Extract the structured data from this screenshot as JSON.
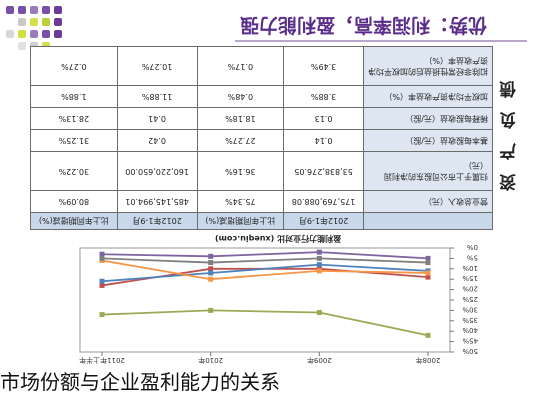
{
  "header": {
    "title": "优势：利润率高，盈利能力强"
  },
  "table": {
    "side_label": "资产负债",
    "columns": [
      "",
      "",
      "2012年1-9月",
      "比上年同期增减(%)",
      "2012年1-9月",
      "比上年同期增减(%)"
    ],
    "rows": [
      {
        "label": "营业总收入（元）",
        "values": [
          "175,769,088.08",
          "75.34%",
          "485,145,994.01",
          "80.09%"
        ]
      },
      {
        "label": "归属于上市公司股东的净利润（元）",
        "values": [
          "53,838,276.05",
          "36.16%",
          "160,220,650.00",
          "30.22%"
        ]
      },
      {
        "label": "基本每股收益（元/股）",
        "values": [
          "0.14",
          "27.27%",
          "0.42",
          "31.25%"
        ]
      },
      {
        "label": "稀释每股收益（元/股）",
        "values": [
          "0.13",
          "18.18%",
          "0.41",
          "28.13%"
        ]
      },
      {
        "label": "加权平均净资产收益率（%）",
        "values": [
          "3.88%",
          "0.48%",
          "11.88%",
          "1.88%"
        ]
      },
      {
        "label": "扣除非经常性损益后的加权平均净资产收益率（%）",
        "values": [
          "3.49%",
          "0.17%",
          "10.27%",
          "0.27%"
        ]
      }
    ]
  },
  "chart_data": {
    "type": "line",
    "title": "盈利能力行业对比 (xueqiu.com)",
    "categories": [
      "2008年",
      "2009年",
      "2010年",
      "2011年上半年"
    ],
    "yticks": [
      "0%",
      "5%",
      "10%",
      "15%",
      "20%",
      "25%",
      "30%",
      "35%",
      "40%",
      "45%",
      "50%"
    ],
    "ylim": [
      0,
      50
    ],
    "series": [
      {
        "color": "#9aab54",
        "values": [
          42,
          31,
          30,
          32
        ]
      },
      {
        "color": "#c0504d",
        "values": [
          14,
          10,
          10,
          18
        ]
      },
      {
        "color": "#4f81bd",
        "values": [
          11,
          8,
          12,
          16
        ]
      },
      {
        "color": "#f79646",
        "values": [
          12,
          11,
          15,
          6
        ]
      },
      {
        "color": "#8064a2",
        "values": [
          5,
          2,
          4,
          3
        ]
      },
      {
        "color": "#7f7f7f",
        "values": [
          7,
          5,
          7,
          5
        ]
      }
    ]
  },
  "caption": "市场份额与企业盈利能力的关系"
}
